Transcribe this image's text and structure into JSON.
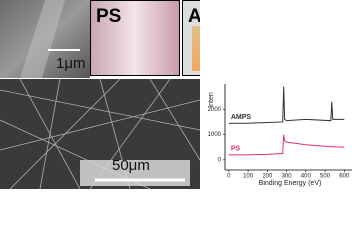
{
  "panels": {
    "sem_small_scale": "1μm",
    "photo_left": "PS",
    "photo_right": "AmPS",
    "sem_large_scale": "50μm"
  },
  "chart_data": {
    "type": "line",
    "x_label": "Binding Energy (eV)",
    "y_label": "Inten",
    "x": [
      0,
      100,
      200,
      280,
      285,
      290,
      300,
      400,
      530,
      535,
      540,
      600
    ],
    "series": [
      {
        "name": "AMPS",
        "color": "#333333",
        "values": [
          1450,
          1450,
          1480,
          1500,
          2900,
          1600,
          1550,
          1600,
          1550,
          2300,
          1600,
          1600
        ]
      },
      {
        "name": "PS",
        "color": "#e0306a",
        "values": [
          200,
          200,
          220,
          250,
          1000,
          750,
          700,
          600,
          520,
          520,
          520,
          500
        ]
      }
    ],
    "xlim": [
      -20,
      640
    ],
    "ylim": [
      -400,
      3000
    ],
    "xticks": [
      0,
      100,
      200,
      300,
      400,
      500,
      600
    ],
    "yticks": [
      0,
      1000,
      2000
    ],
    "grid": false
  }
}
